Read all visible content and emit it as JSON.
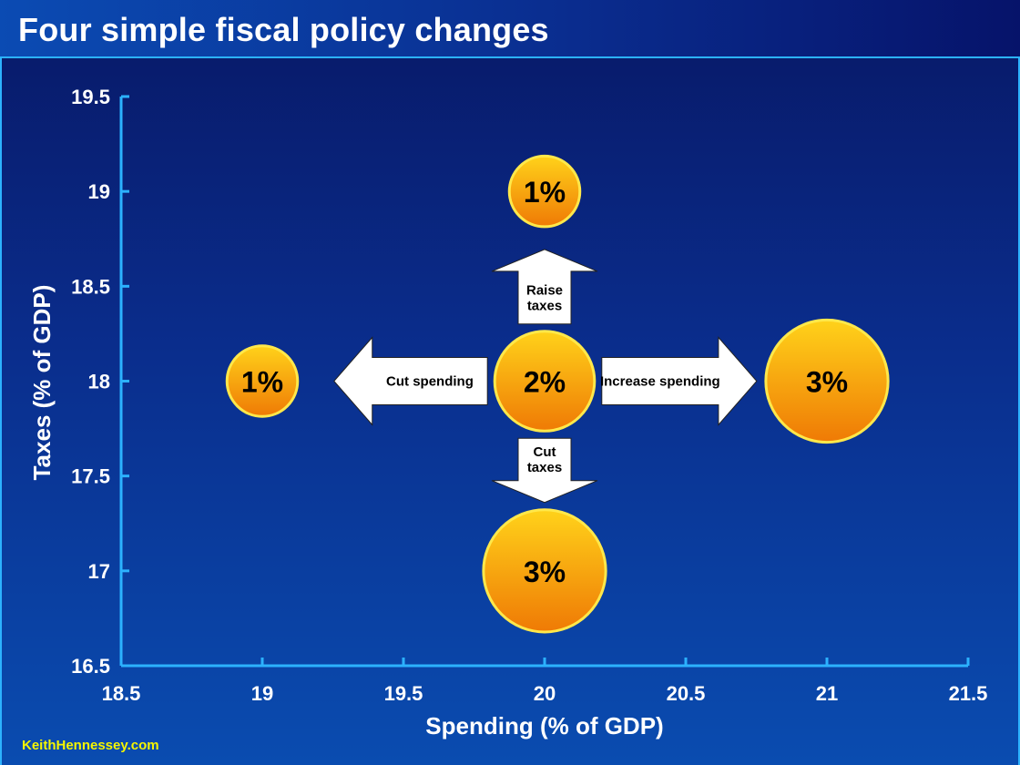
{
  "header": {
    "title": "Four simple fiscal policy changes"
  },
  "footer": {
    "credit": "KeithHennessey.com"
  },
  "colors": {
    "axis": "#2cb2ff",
    "bubble_top": "#ffd21a",
    "bubble_bottom": "#ef7a05",
    "bubble_stroke": "#ffe84a",
    "arrow_fill": "#ffffff"
  },
  "chart_data": {
    "type": "scatter",
    "title": "Four simple fiscal policy changes",
    "xlabel": "Spending (% of GDP)",
    "ylabel": "Taxes (% of GDP)",
    "xlim": [
      18.5,
      21.5
    ],
    "ylim": [
      16.5,
      19.5
    ],
    "xticks": [
      "18.5",
      "19",
      "19.5",
      "20",
      "20.5",
      "21",
      "21.5"
    ],
    "yticks": [
      "16.5",
      "17",
      "17.5",
      "18",
      "18.5",
      "19",
      "19.5"
    ],
    "grid": false,
    "points": [
      {
        "x": 20,
        "y": 18,
        "label": "2%",
        "size": 2
      },
      {
        "x": 19,
        "y": 18,
        "label": "1%",
        "size": 1
      },
      {
        "x": 21,
        "y": 18,
        "label": "3%",
        "size": 3
      },
      {
        "x": 20,
        "y": 19,
        "label": "1%",
        "size": 1
      },
      {
        "x": 20,
        "y": 17,
        "label": "3%",
        "size": 3
      }
    ],
    "annotations": [
      {
        "direction": "left",
        "lines": [
          "Cut spending"
        ]
      },
      {
        "direction": "right",
        "lines": [
          "Increase spending"
        ]
      },
      {
        "direction": "up",
        "lines": [
          "Raise",
          "taxes"
        ]
      },
      {
        "direction": "down",
        "lines": [
          "Cut",
          "taxes"
        ]
      }
    ]
  }
}
